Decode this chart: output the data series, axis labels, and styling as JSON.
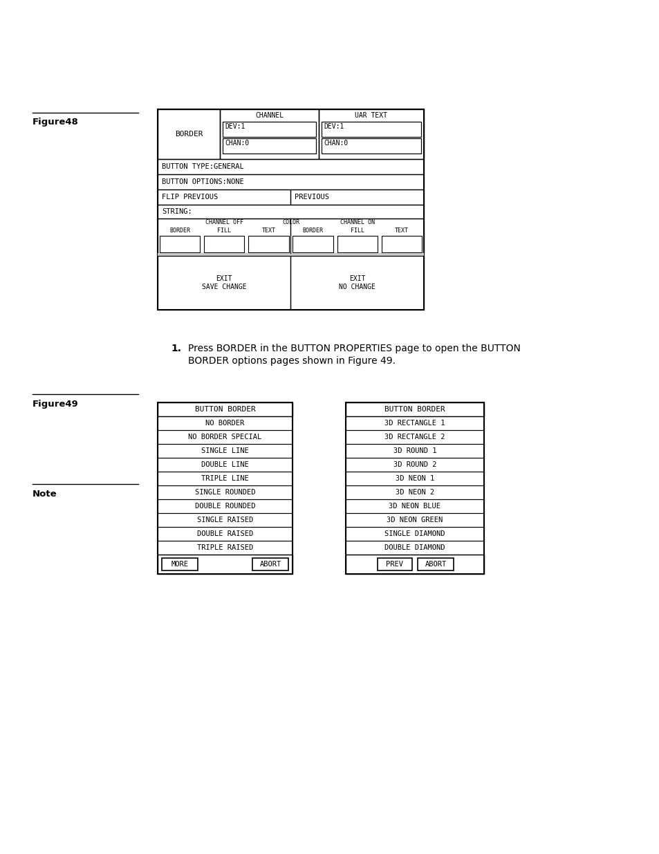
{
  "bg_color": "#ffffff",
  "fig48_label": "Figure48",
  "fig49_label": "Figure49",
  "note_label": "Note",
  "mono_font": "DejaVu Sans Mono",
  "serif_font": "DejaVu Serif",
  "sans_font": "DejaVu Sans",
  "fig48": {
    "border_label": "BORDER",
    "channel_label": "CHANNEL",
    "var_text_label": "UAR TEXT",
    "dev1": "DEV:1",
    "chan0": "CHAN:0",
    "button_type": "BUTTON TYPE:GENERAL",
    "button_options": "BUTTON OPTIONS:NONE",
    "flip_previous": "FLIP PREVIOUS",
    "previous": "PREVIOUS",
    "string": "STRING:",
    "channel_off": "CHANNEL OFF",
    "color_label": "COLOR",
    "channel_on": "CHANNEL ON",
    "border_col": "BORDER",
    "fill_col": "FILL",
    "text_col": "TEXT",
    "exit_save": "EXIT\nSAVE CHANGE",
    "exit_no": "EXIT\nNO CHANGE"
  },
  "fig49_left": {
    "title": "BUTTON BORDER",
    "items": [
      "NO BORDER",
      "NO BORDER SPECIAL",
      "SINGLE LINE",
      "DOUBLE LINE",
      "TRIPLE LINE",
      "SINGLE ROUNDED",
      "DOUBLE ROUNDED",
      "SINGLE RAISED",
      "DOUBLE RAISED",
      "TRIPLE RAISED"
    ],
    "btn1": "MORE",
    "btn2": "ABORT"
  },
  "fig49_right": {
    "title": "BUTTON BORDER",
    "items": [
      "3D RECTANGLE 1",
      "3D RECTANGLE 2",
      "3D ROUND 1",
      "3D ROUND 2",
      "3D NEON 1",
      "3D NEON 2",
      "3D NEON BLUE",
      "3D NEON GREEN",
      "SINGLE DIAMOND",
      "DOUBLE DIAMOND"
    ],
    "btn1": "PREV",
    "btn2": "ABORT"
  },
  "instr_text_line1": "Press BORDER in the BUTTON PROPERTIES page to open the BUTTON",
  "instr_text_line2": "BORDER options pages shown in Figure 49."
}
